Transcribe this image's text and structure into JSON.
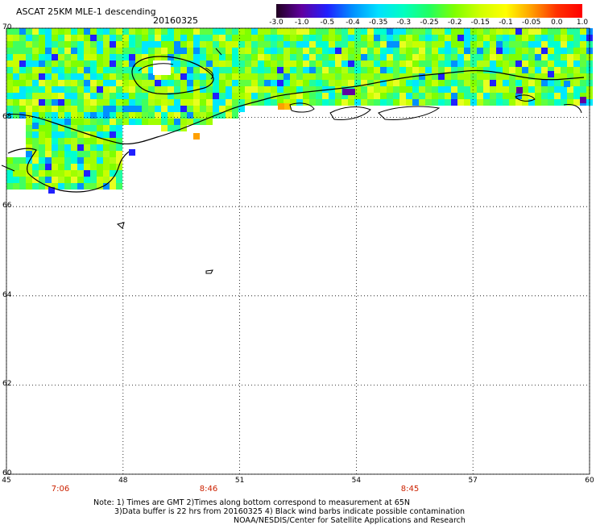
{
  "header": {
    "title": "ASCAT 25KM MLE-1 descending",
    "date": "20160325"
  },
  "colorbar": {
    "labels": [
      "-3.0",
      "-1.0",
      "-0.5",
      "-0.4",
      "-0.35",
      "-0.3",
      "-0.25",
      "-0.2",
      "-0.15",
      "-0.1",
      "-0.05",
      "0.0",
      "1.0"
    ],
    "colors": [
      "#200020",
      "#6000a0",
      "#2020ff",
      "#0090ff",
      "#00e0ff",
      "#00ffc0",
      "#20ff60",
      "#80ff00",
      "#d0ff00",
      "#ffff00",
      "#ffa000",
      "#ff3000",
      "#ff0000"
    ]
  },
  "axes": {
    "lat_labels": [
      "70",
      "68",
      "66",
      "64",
      "62",
      "60"
    ],
    "lon_labels": [
      "45",
      "48",
      "51",
      "54",
      "57",
      "60"
    ],
    "lat_range": [
      60,
      70
    ],
    "lon_range": [
      45,
      60
    ]
  },
  "times": [
    "7:06",
    "8:46",
    "8:45"
  ],
  "notes": {
    "line1": "Note: 1) Times are GMT 2)Times along bottom correspond to measurement at 65N",
    "line2": "3)Data buffer is 22 hrs from 20160325 4) Black wind barbs indicate possible contamination",
    "line3": "NOAA/NESDIS/Center for Satellite Applications and Research"
  }
}
